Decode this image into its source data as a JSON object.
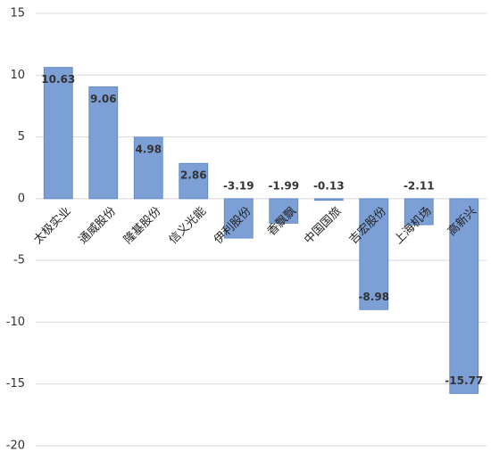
{
  "chart_data": {
    "type": "bar",
    "categories": [
      "太极实业",
      "通威股份",
      "隆基股份",
      "信义光能",
      "伊利股份",
      "香飘飘",
      "中国国旅",
      "吉宏股份",
      "上海机场",
      "高新兴"
    ],
    "values": [
      10.63,
      9.06,
      4.98,
      2.86,
      -3.19,
      -1.99,
      -0.13,
      -8.98,
      -2.11,
      -15.77
    ],
    "color": "#7c9fd6",
    "ylim": [
      -20,
      15
    ],
    "yticks": [
      -20,
      -15,
      -10,
      -5,
      0,
      5,
      10,
      15
    ],
    "grid": true
  }
}
